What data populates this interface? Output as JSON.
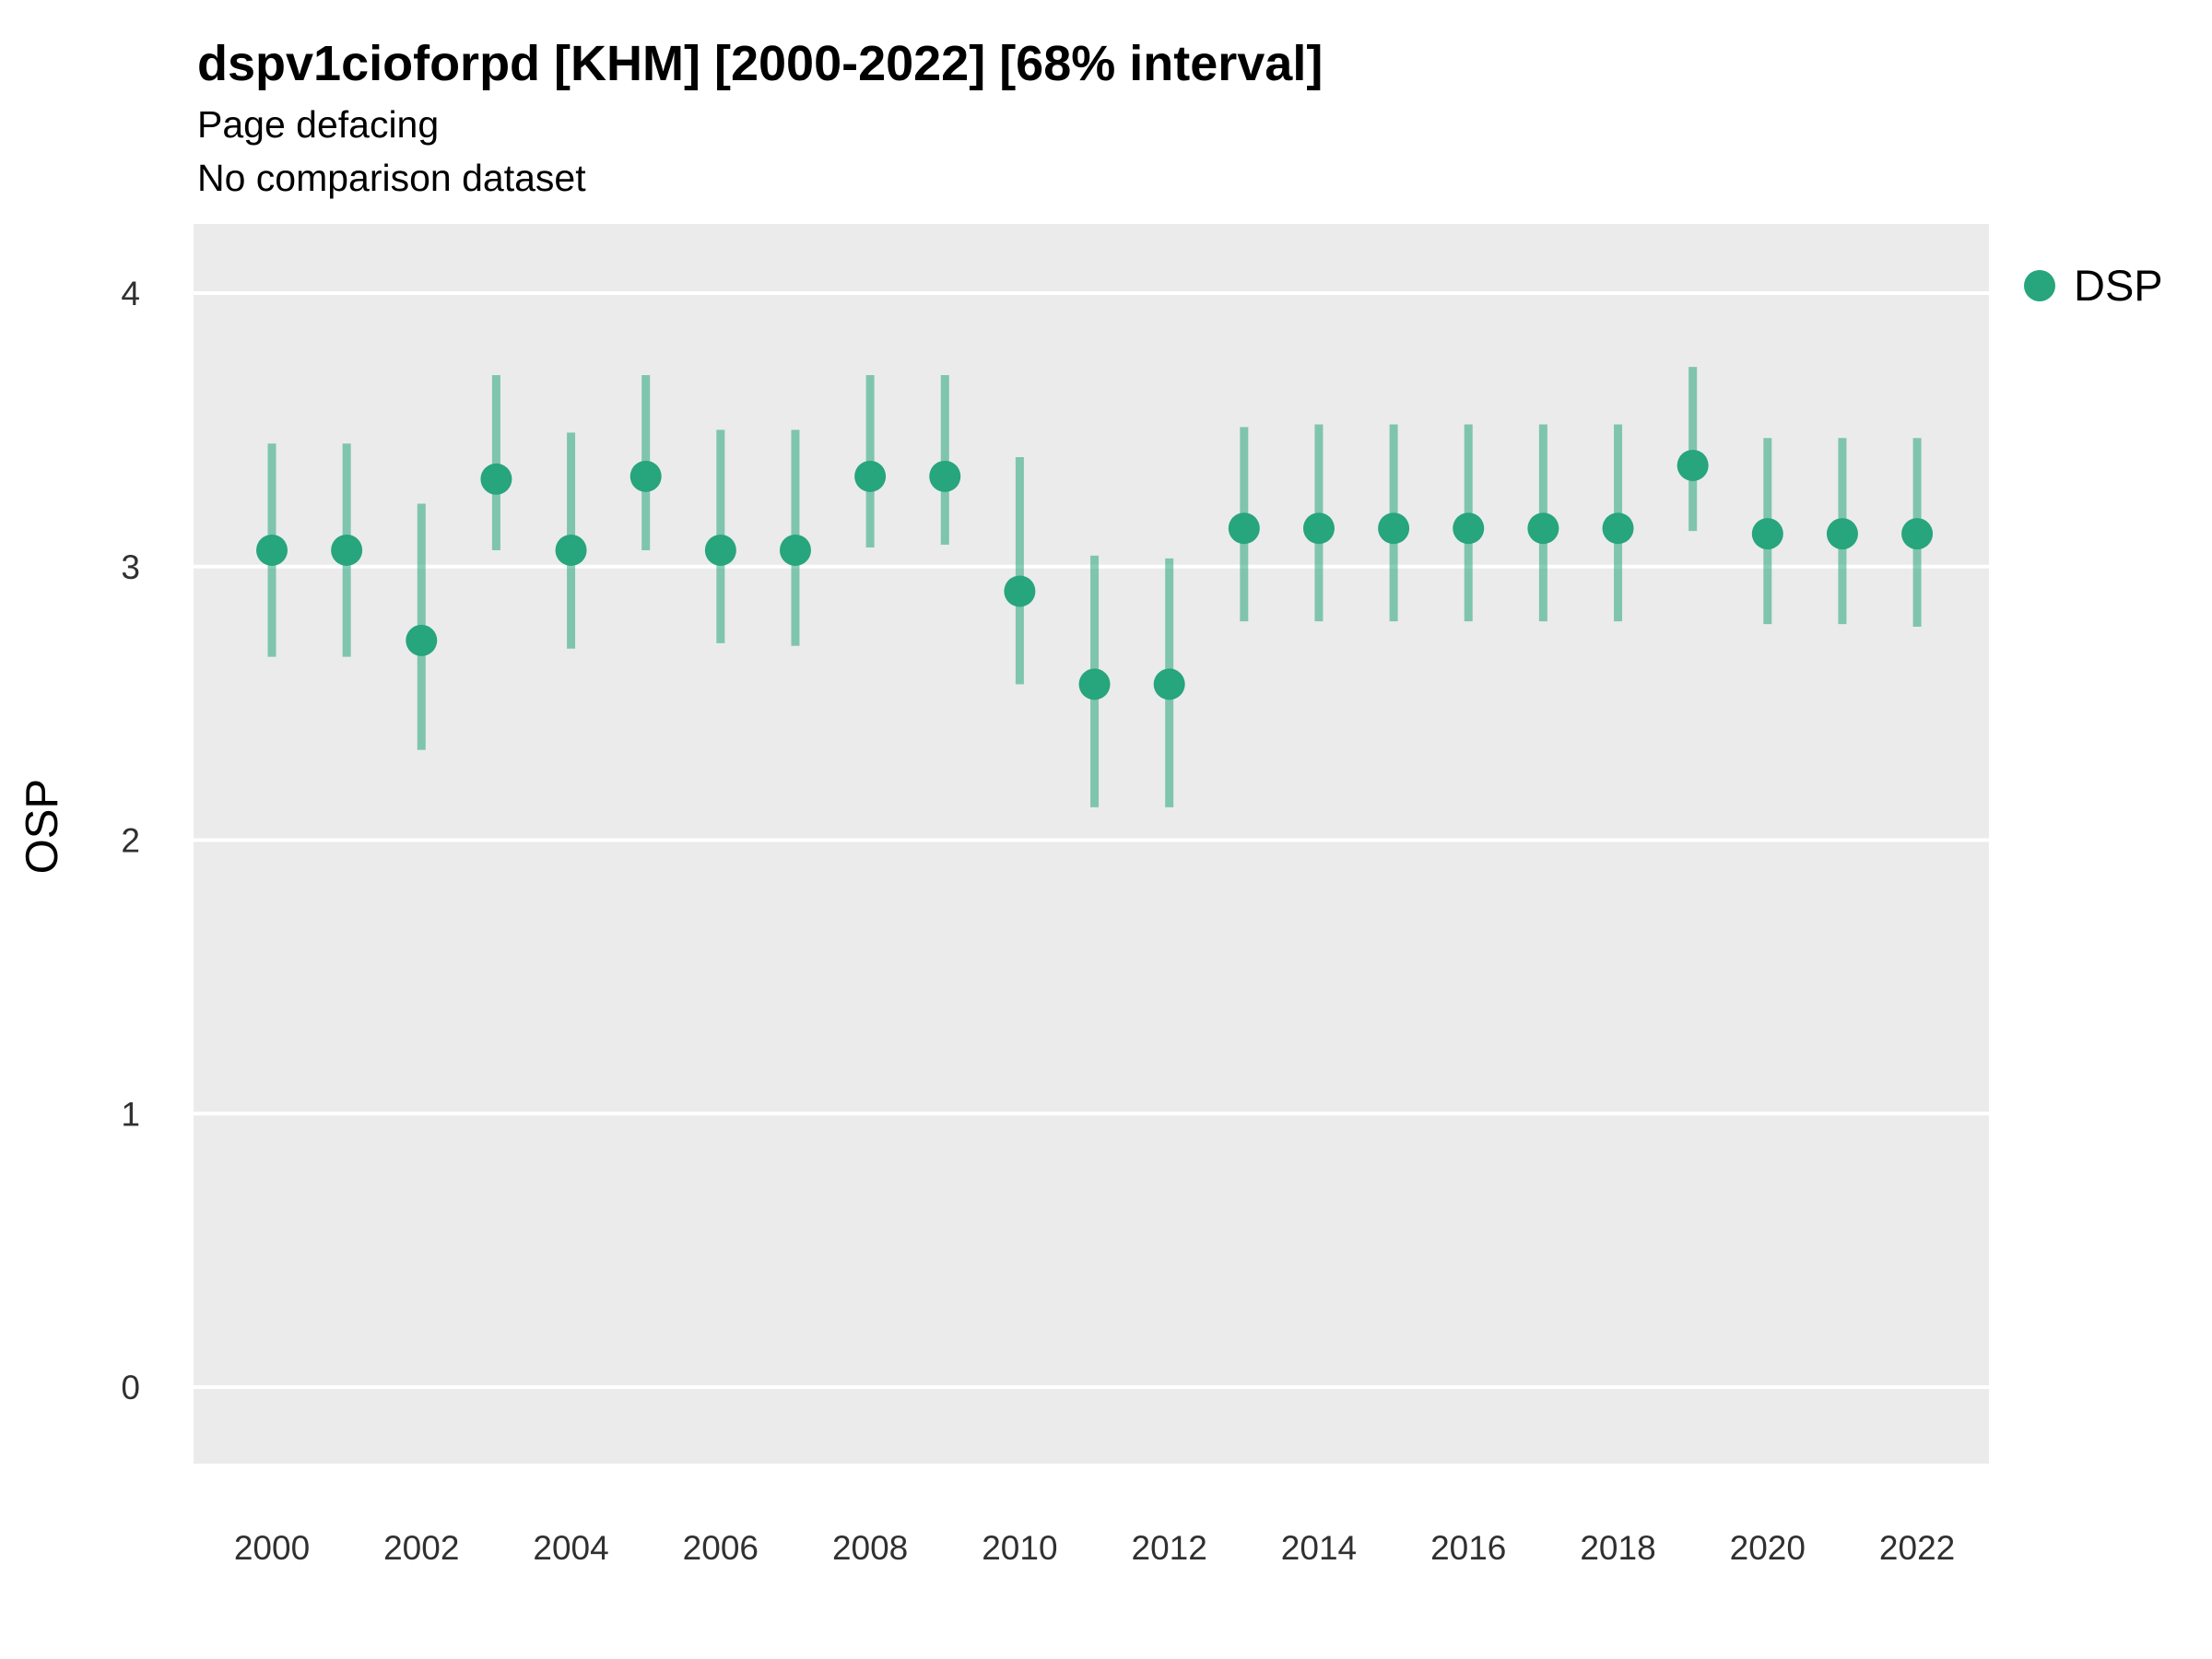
{
  "title": "dspv1cioforpd [KHM] [2000-2022] [68% interval]",
  "subtitle": "Page defacing",
  "subtitle2": "No comparison dataset",
  "legend": {
    "label": "DSP"
  },
  "colors": {
    "point": "#27a57c",
    "interval": "#27a57c",
    "interval_opacity": "0.55",
    "panel": "#ebebeb",
    "gridline": "#ffffff",
    "tick_text": "#303030",
    "axis_title_text": "#000000"
  },
  "chart_data": {
    "type": "scatter",
    "title": "dspv1cioforpd [KHM] [2000-2022] [68% interval]",
    "subtitle": "Page defacing",
    "note": "No comparison dataset",
    "xlabel": "",
    "ylabel": "OSP",
    "ylim": [
      -0.28,
      4.25
    ],
    "yticks": [
      0,
      1,
      2,
      3,
      4
    ],
    "xticks": [
      2000,
      2002,
      2004,
      2006,
      2008,
      2010,
      2012,
      2014,
      2016,
      2018,
      2020,
      2022
    ],
    "grid": true,
    "legend_position": "right",
    "x": [
      2000,
      2001,
      2002,
      2003,
      2004,
      2005,
      2006,
      2007,
      2008,
      2009,
      2010,
      2011,
      2012,
      2013,
      2014,
      2015,
      2016,
      2017,
      2018,
      2019,
      2020,
      2021,
      2022
    ],
    "series": [
      {
        "name": "DSP",
        "estimate": [
          3.06,
          3.06,
          2.73,
          3.32,
          3.06,
          3.33,
          3.06,
          3.06,
          3.33,
          3.33,
          2.91,
          2.57,
          2.57,
          3.14,
          3.14,
          3.14,
          3.14,
          3.14,
          3.14,
          3.37,
          3.12,
          3.12,
          3.12
        ],
        "lower": [
          2.67,
          2.67,
          2.33,
          3.06,
          2.7,
          3.06,
          2.72,
          2.71,
          3.07,
          3.08,
          2.57,
          2.12,
          2.12,
          2.8,
          2.8,
          2.8,
          2.8,
          2.8,
          2.8,
          3.13,
          2.79,
          2.79,
          2.78
        ],
        "upper": [
          3.45,
          3.45,
          3.23,
          3.7,
          3.49,
          3.7,
          3.5,
          3.5,
          3.7,
          3.7,
          3.4,
          3.04,
          3.03,
          3.51,
          3.52,
          3.52,
          3.52,
          3.52,
          3.52,
          3.73,
          3.47,
          3.47,
          3.47
        ]
      }
    ]
  }
}
